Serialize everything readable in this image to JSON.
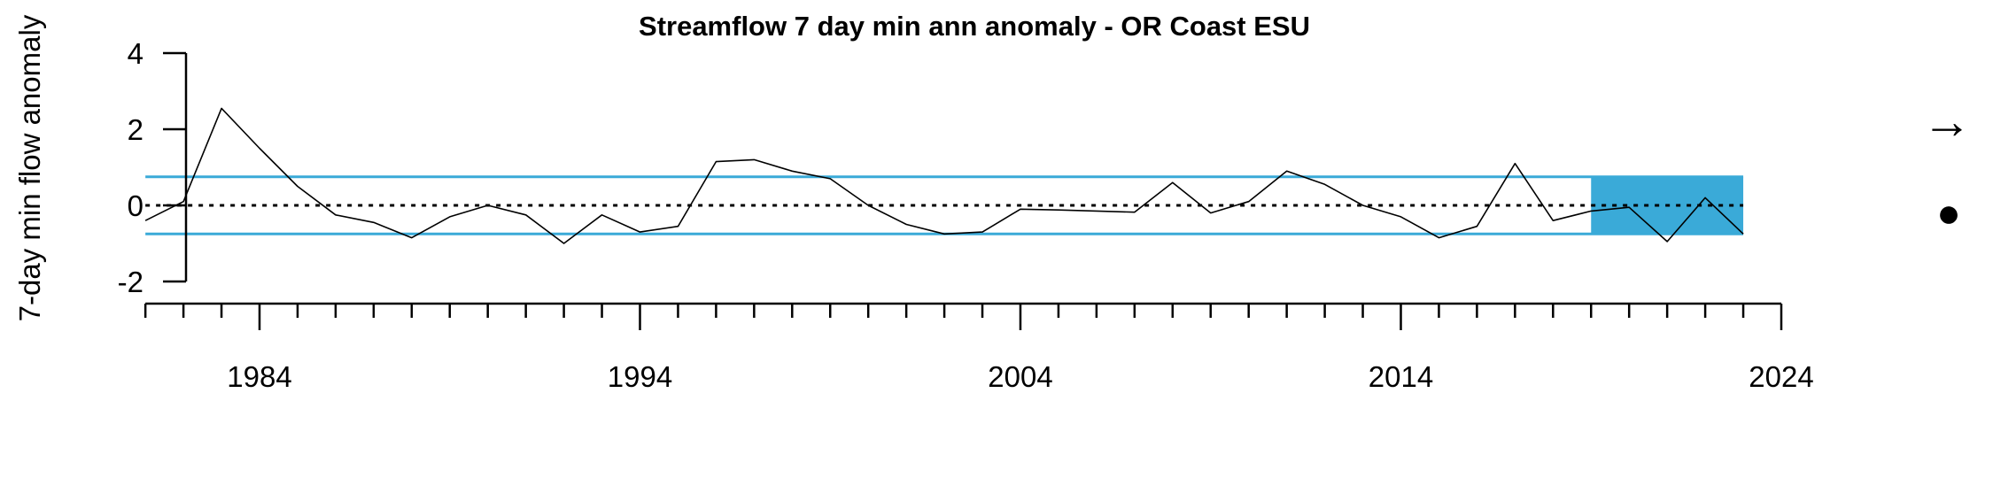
{
  "chart_data": {
    "type": "line",
    "title": "Streamflow 7 day min ann anomaly - OR Coast ESU",
    "xlabel": "",
    "ylabel": "7-day min flow anomaly",
    "xlim": [
      1980,
      2024
    ],
    "ylim": [
      -2,
      4
    ],
    "x_ticks": [
      1984,
      1994,
      2004,
      2014,
      2024
    ],
    "y_ticks": [
      4,
      2,
      0,
      -2
    ],
    "minor_tick_step": 1,
    "years": [
      1981,
      1982,
      1983,
      1984,
      1985,
      1986,
      1987,
      1988,
      1989,
      1990,
      1991,
      1992,
      1993,
      1994,
      1995,
      1996,
      1997,
      1998,
      1999,
      2000,
      2001,
      2002,
      2003,
      2004,
      2005,
      2006,
      2007,
      2008,
      2009,
      2010,
      2011,
      2012,
      2013,
      2014,
      2015,
      2016,
      2017,
      2018,
      2019,
      2020,
      2021,
      2022,
      2023
    ],
    "values": [
      -0.4,
      0.1,
      2.55,
      1.5,
      0.5,
      -0.25,
      -0.45,
      -0.85,
      -0.3,
      0.0,
      -0.25,
      -1.0,
      -0.25,
      -0.7,
      -0.55,
      1.15,
      1.2,
      0.9,
      0.7,
      0.0,
      -0.5,
      -0.75,
      -0.7,
      -0.1,
      -0.12,
      -0.15,
      -0.18,
      0.6,
      -0.2,
      0.1,
      0.9,
      0.55,
      0.0,
      -0.3,
      -0.85,
      -0.55,
      1.1,
      -0.4,
      -0.15,
      -0.05,
      -0.95,
      0.2,
      -0.75
    ],
    "mean": 0.0,
    "sd_upper": 0.75,
    "sd_lower": -0.75,
    "recent_window": [
      2019,
      2023
    ],
    "trend_symbol": "→",
    "mean_symbol": "●",
    "colors": {
      "line": "#000000",
      "sd_lines": "#3aaad8",
      "recent_shade": "#3aaad8",
      "mean_line": "#000000"
    }
  }
}
